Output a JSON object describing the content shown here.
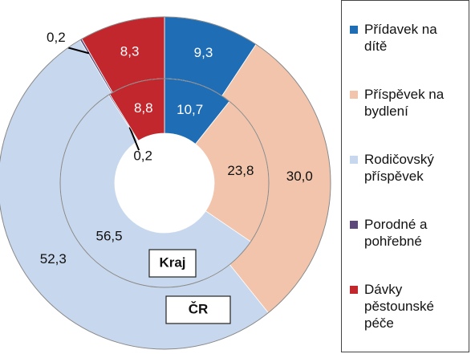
{
  "chart_data": {
    "type": "donut",
    "categories": [
      "Přídavek na dítě",
      "Příspěvek na bydlení",
      "Rodičovský příspěvek",
      "Porodné a pohřebné",
      "Dávky pěstounské péče"
    ],
    "colors": [
      "#1f6db5",
      "#f2c4ab",
      "#c7d7ed",
      "#5b4a7a",
      "#c1272d"
    ],
    "series": [
      {
        "name": "ČR",
        "values": [
          9.3,
          30.0,
          52.3,
          0.2,
          8.3
        ],
        "value_labels": [
          "9,3",
          "30,0",
          "52,3",
          "0,2",
          "8,3"
        ]
      },
      {
        "name": "Kraj",
        "values": [
          10.7,
          23.8,
          56.5,
          0.2,
          8.8
        ],
        "value_labels": [
          "10,7",
          "23,8",
          "56,5",
          "0,2",
          "8,8"
        ]
      }
    ]
  }
}
